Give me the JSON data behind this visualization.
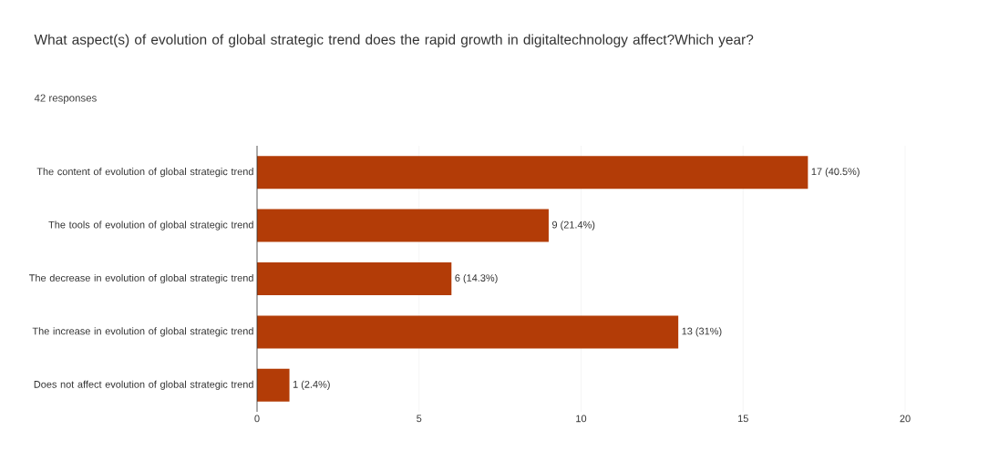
{
  "chart_data": {
    "type": "bar",
    "orientation": "horizontal",
    "title": "What aspect(s) of evolution of global strategic trend does the rapid growth in digitaltechnology affect?Which year?",
    "subtitle": "42 responses",
    "categories": [
      "The content of evolution of global strategic trend",
      "The tools of evolution of global strategic trend",
      "The decrease in evolution of global strategic trend",
      "The increase in evolution of global strategic trend",
      "Does not affect evolution of global strategic trend"
    ],
    "values": [
      17,
      9,
      6,
      13,
      1
    ],
    "value_labels": [
      "17 (40.5%)",
      "9 (21.4%)",
      "6 (14.3%)",
      "13 (31%)",
      "1 (2.4%)"
    ],
    "color": "#b33c07",
    "xlim": [
      0,
      20
    ],
    "xticks": [
      0,
      5,
      10,
      15,
      20
    ],
    "grid": "x"
  }
}
